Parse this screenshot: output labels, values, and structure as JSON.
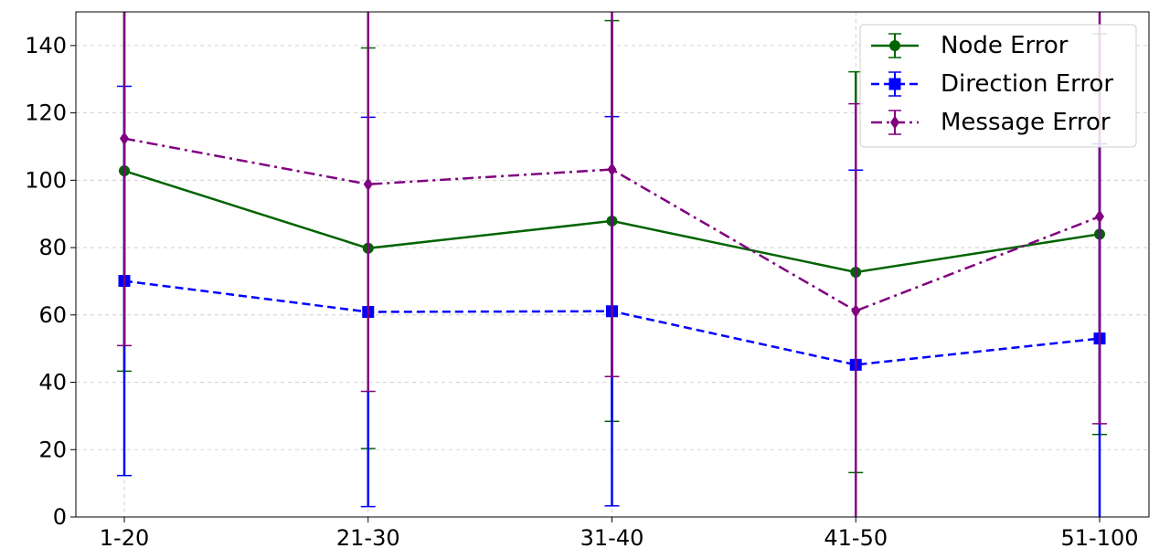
{
  "chart_data": {
    "type": "line",
    "title": "",
    "xlabel": "",
    "ylabel": "",
    "categories": [
      "1-20",
      "21-30",
      "31-40",
      "41-50",
      "51-100"
    ],
    "ylim": [
      0,
      150
    ],
    "yticks": [
      0,
      20,
      40,
      60,
      80,
      100,
      120,
      140
    ],
    "grid": true,
    "legend_position": "top-right",
    "series": [
      {
        "name": "Node Error",
        "color": "#006400",
        "marker": "circle",
        "line_style": "solid",
        "values": [
          102.8,
          79.8,
          87.9,
          72.7,
          84.0
        ],
        "error": [
          59.5,
          59.5,
          59.5,
          59.5,
          59.5
        ]
      },
      {
        "name": "Direction Error",
        "color": "#0000ff",
        "marker": "square",
        "line_style": "dashed",
        "values": [
          70.1,
          60.9,
          61.1,
          45.2,
          53.0
        ],
        "error": [
          57.8,
          57.8,
          57.8,
          57.8,
          57.8
        ]
      },
      {
        "name": "Message Error",
        "color": "#800080",
        "marker": "diamond",
        "line_style": "dashdot",
        "values": [
          112.4,
          98.8,
          103.2,
          61.2,
          89.2
        ],
        "error": [
          61.5,
          61.5,
          61.5,
          61.5,
          61.5
        ]
      }
    ]
  }
}
